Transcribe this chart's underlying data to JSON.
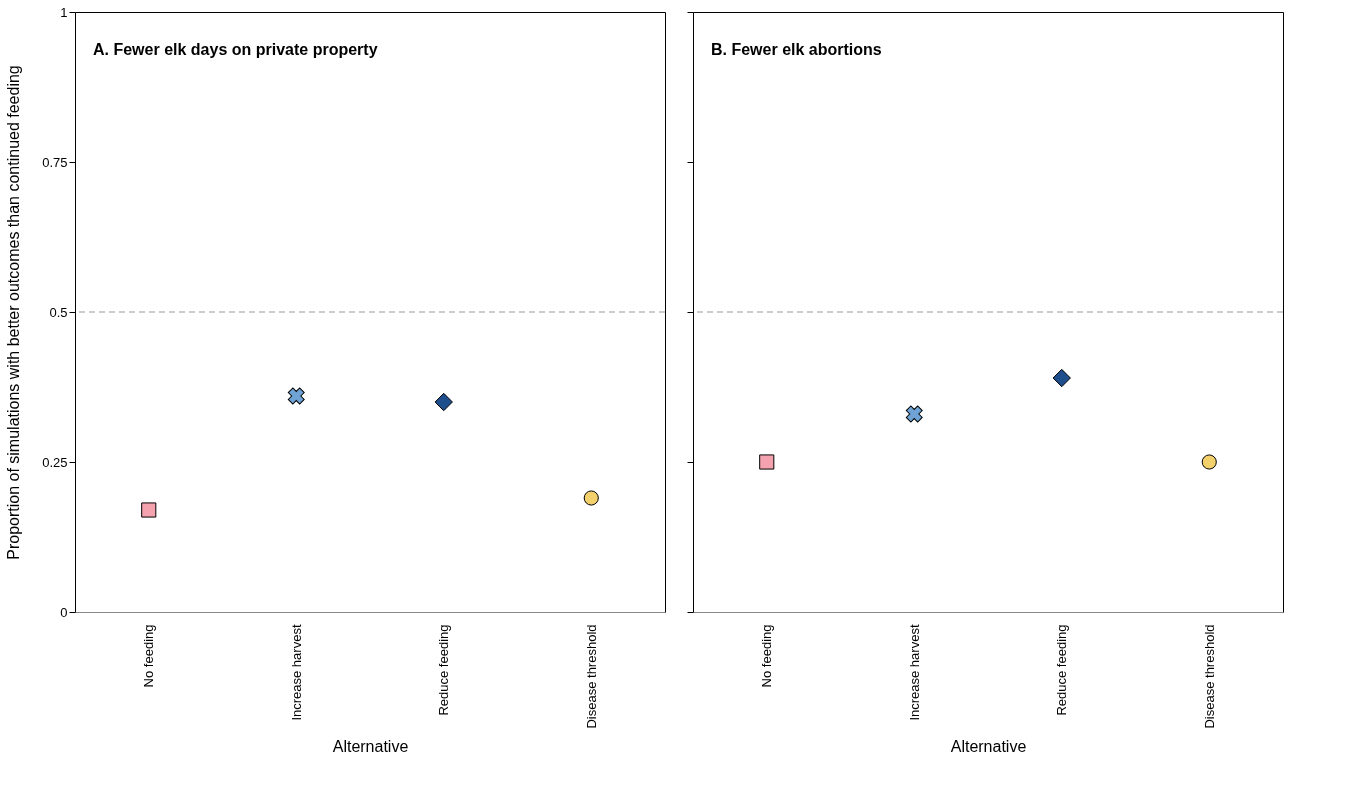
{
  "chart_data": [
    {
      "type": "scatter",
      "title": "A. Fewer elk days on private property",
      "xlabel": "Alternative",
      "ylabel": "Proportion of simulations with better outcomes than continued feeding",
      "categories": [
        "No feeding",
        "Increase harvest",
        "Reduce feeding",
        "Disease threshold"
      ],
      "ylim": [
        0,
        1
      ],
      "yticks": [
        0,
        0.25,
        0.5,
        0.75,
        1
      ],
      "grid": false,
      "ref_lines": [
        {
          "axis": "y",
          "value": 0.5,
          "color": "#999999",
          "line_style": "dashed"
        }
      ],
      "series": [
        {
          "color": "#f4a3ae",
          "marker": "square",
          "values": [
            0.17,
            null,
            null,
            null
          ]
        },
        {
          "color": "#6fa3d6",
          "marker": "cross",
          "values": [
            null,
            0.36,
            null,
            null
          ]
        },
        {
          "color": "#1f4e8c",
          "marker": "diamond",
          "values": [
            null,
            null,
            0.35,
            null
          ]
        },
        {
          "color": "#f2d06b",
          "marker": "circle",
          "values": [
            null,
            null,
            null,
            0.19
          ]
        }
      ]
    },
    {
      "type": "scatter",
      "title": "B. Fewer elk abortions",
      "xlabel": "Alternative",
      "categories": [
        "No feeding",
        "Increase harvest",
        "Reduce feeding",
        "Disease threshold"
      ],
      "ylim": [
        0,
        1
      ],
      "yticks": [
        0,
        0.25,
        0.5,
        0.75,
        1
      ],
      "grid": false,
      "tick_labels": "x",
      "ref_lines": [
        {
          "axis": "y",
          "value": 0.5,
          "color": "#999999",
          "line_style": "dashed"
        }
      ],
      "series": [
        {
          "color": "#f4a3ae",
          "marker": "square",
          "values": [
            0.25,
            null,
            null,
            null
          ]
        },
        {
          "color": "#6fa3d6",
          "marker": "cross",
          "values": [
            null,
            0.33,
            null,
            null
          ]
        },
        {
          "color": "#1f4e8c",
          "marker": "diamond",
          "values": [
            null,
            null,
            0.39,
            null
          ]
        },
        {
          "color": "#f2d06b",
          "marker": "circle",
          "values": [
            null,
            null,
            null,
            0.25
          ]
        }
      ]
    }
  ]
}
